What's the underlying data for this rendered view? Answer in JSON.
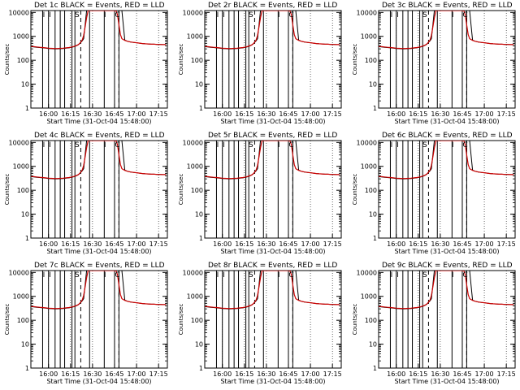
{
  "page": {
    "background": "#ffffff",
    "axis_color": "#000000",
    "events_color": "#000000",
    "lld_color": "#cc0000"
  },
  "xticks": [
    "16:00",
    "16:15",
    "16:30",
    "16:45",
    "17:00",
    "17:15"
  ],
  "yticks": [
    "1",
    "10",
    "100",
    "1000",
    "10000"
  ],
  "ylabel": "Counts/sec",
  "xlabel": "Start Time (31-Oct-04 15:48:00)",
  "chart_data": [
    {
      "title": "Det 1c BLACK = Events, RED = LLD",
      "type": "line",
      "events_marks": [
        "I",
        "I",
        "S",
        "I",
        "C"
      ]
    },
    {
      "title": "Det 2r BLACK = Events, RED = LLD",
      "type": "line",
      "events_marks": [
        "I",
        "I",
        "S",
        "I",
        "C"
      ]
    },
    {
      "title": "Det 3c BLACK = Events, RED = LLD",
      "type": "line",
      "events_marks": [
        "I",
        "I",
        "S",
        "I",
        "C"
      ]
    },
    {
      "title": "Det 4c BLACK = Events, RED = LLD",
      "type": "line",
      "events_marks": [
        "I",
        "I",
        "S",
        "I",
        "C"
      ]
    },
    {
      "title": "Det 5r BLACK = Events, RED = LLD",
      "type": "line",
      "events_marks": [
        "I",
        "I",
        "S",
        "I",
        "C"
      ]
    },
    {
      "title": "Det 6c BLACK = Events, RED = LLD",
      "type": "line",
      "events_marks": [
        "I",
        "I",
        "S",
        "I",
        "C"
      ]
    },
    {
      "title": "Det 7c BLACK = Events, RED = LLD",
      "type": "line",
      "events_marks": [
        "I",
        "I",
        "S",
        "I",
        "C"
      ]
    },
    {
      "title": "Det 8r BLACK = Events, RED = LLD",
      "type": "line",
      "events_marks": [
        "I",
        "I",
        "S",
        "I",
        "C"
      ]
    },
    {
      "title": "Det 9c BLACK = Events, RED = LLD",
      "type": "line",
      "events_marks": [
        "I",
        "I",
        "S",
        "I",
        "C"
      ]
    }
  ],
  "shared_series": {
    "x_unit": "minutes after 15:48:00",
    "x_range": [
      0,
      93
    ],
    "ylim": [
      1,
      12000
    ],
    "yscale": "log",
    "event_lines_solid": [
      8,
      12,
      16.5,
      20,
      23,
      28,
      30,
      40,
      50,
      57,
      60
    ],
    "event_lines_dashed": [
      34,
      60
    ],
    "events": {
      "x": [
        0,
        2,
        4,
        6,
        8,
        10,
        12,
        14,
        16,
        18,
        20,
        22,
        24,
        26,
        28,
        30,
        32,
        33,
        34,
        35,
        36,
        38,
        40,
        42,
        44,
        46,
        48,
        50,
        52,
        54,
        56,
        58,
        59,
        60,
        61,
        62,
        64,
        66,
        68,
        70,
        72,
        74,
        76,
        78,
        80,
        82,
        84,
        86,
        88,
        90,
        92
      ],
      "y": [
        370,
        360,
        350,
        340,
        330,
        320,
        310,
        305,
        300,
        300,
        305,
        310,
        320,
        330,
        350,
        380,
        430,
        480,
        560,
        650,
        800,
        12000,
        12000,
        12000,
        12000,
        12000,
        12000,
        12000,
        12000,
        12000,
        12000,
        12000,
        12000,
        12000,
        12000,
        12000,
        700,
        620,
        580,
        560,
        540,
        520,
        500,
        490,
        480,
        470,
        470,
        460,
        460,
        450,
        450
      ]
    },
    "lld": {
      "x": [
        0,
        2,
        4,
        6,
        8,
        10,
        12,
        14,
        16,
        18,
        20,
        22,
        24,
        26,
        28,
        30,
        32,
        33,
        34,
        35,
        36,
        37,
        38,
        39,
        40,
        42,
        44,
        46,
        48,
        50,
        52,
        54,
        56,
        57,
        58,
        59,
        60,
        61,
        62,
        64,
        66,
        68,
        70,
        72,
        74,
        76,
        78,
        80,
        82,
        84,
        86,
        88,
        90,
        92
      ],
      "y": [
        380,
        370,
        360,
        350,
        340,
        330,
        320,
        315,
        310,
        310,
        315,
        320,
        330,
        340,
        360,
        390,
        440,
        490,
        570,
        700,
        1100,
        2500,
        6000,
        12000,
        12000,
        12000,
        12000,
        12000,
        12000,
        12000,
        12000,
        12000,
        12000,
        12000,
        12000,
        8000,
        3000,
        1200,
        800,
        680,
        620,
        580,
        560,
        540,
        520,
        500,
        490,
        480,
        470,
        470,
        460,
        460,
        450,
        450
      ]
    }
  }
}
